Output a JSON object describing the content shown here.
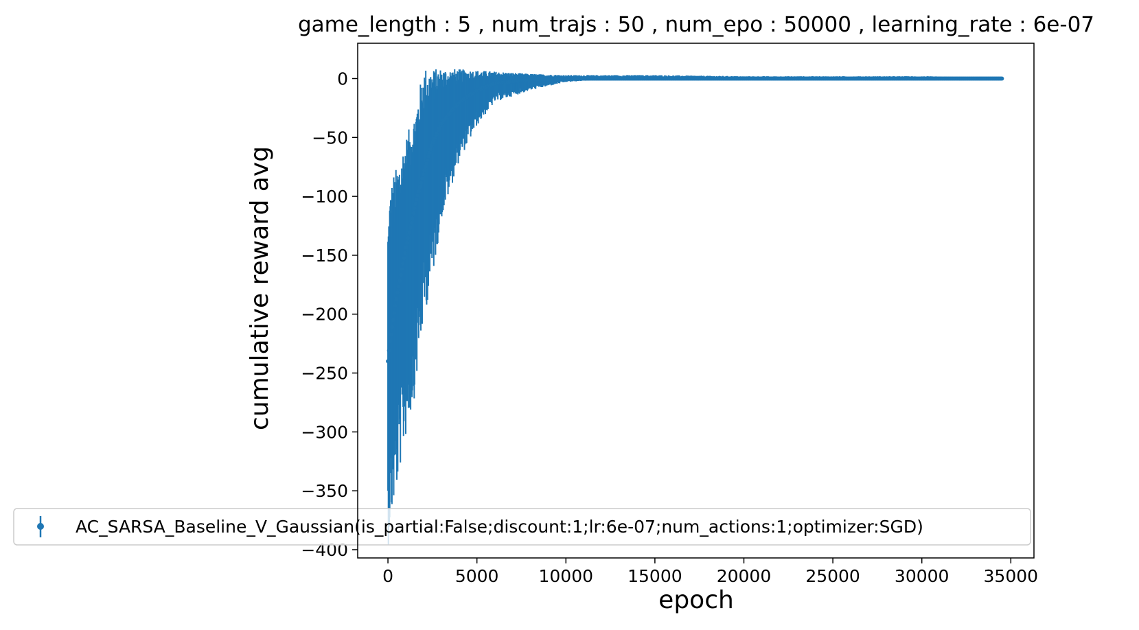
{
  "chart_data": {
    "type": "errorbar",
    "title": "game_length : 5 , num_trajs : 50 , num_epo : 50000 , learning_rate : 6e-07",
    "xlabel": "epoch",
    "ylabel": "cumulative reward avg",
    "xlim": [
      -1700,
      36300
    ],
    "ylim": [
      -407,
      30
    ],
    "xticks": [
      0,
      5000,
      10000,
      15000,
      20000,
      25000,
      30000,
      35000
    ],
    "xtick_labels": [
      "0",
      "5000",
      "10000",
      "15000",
      "20000",
      "25000",
      "30000",
      "35000"
    ],
    "yticks": [
      0,
      -50,
      -100,
      -150,
      -200,
      -250,
      -300,
      -350,
      -400
    ],
    "ytick_labels": [
      "0",
      "−50",
      "−100",
      "−150",
      "−200",
      "−250",
      "−300",
      "−350",
      "−400"
    ],
    "grid": false,
    "legend_position": "lower-left",
    "series": [
      {
        "name": "AC_SARSA_Baseline_V_Gaussian(is_partial:False;discount:1;lr:6e-07;num_actions:1;optimizer:SGD)",
        "color": "#1f77b4",
        "x_range": [
          0,
          34500
        ],
        "x": [
          0,
          100,
          300,
          500,
          800,
          1000,
          1500,
          2000,
          2500,
          3000,
          4000,
          5000,
          6000,
          8000,
          10000,
          12000,
          15000,
          20000,
          25000,
          30000,
          34500
        ],
        "mean": [
          -240,
          -225,
          -205,
          -185,
          -160,
          -145,
          -110,
          -80,
          -55,
          -38,
          -20,
          -10,
          -4,
          -1,
          0,
          0,
          0,
          0,
          0,
          0,
          0
        ],
        "upper": [
          -120,
          -95,
          -80,
          -75,
          -60,
          -50,
          -30,
          10,
          8,
          9,
          8,
          7,
          6,
          4,
          3,
          3,
          3,
          2,
          2,
          2,
          1
        ],
        "lower": [
          -400,
          -385,
          -365,
          -350,
          -320,
          -305,
          -270,
          -205,
          -170,
          -120,
          -70,
          -40,
          -20,
          -10,
          -3,
          -1,
          -1,
          -1,
          -1,
          -1,
          -1
        ]
      }
    ]
  }
}
